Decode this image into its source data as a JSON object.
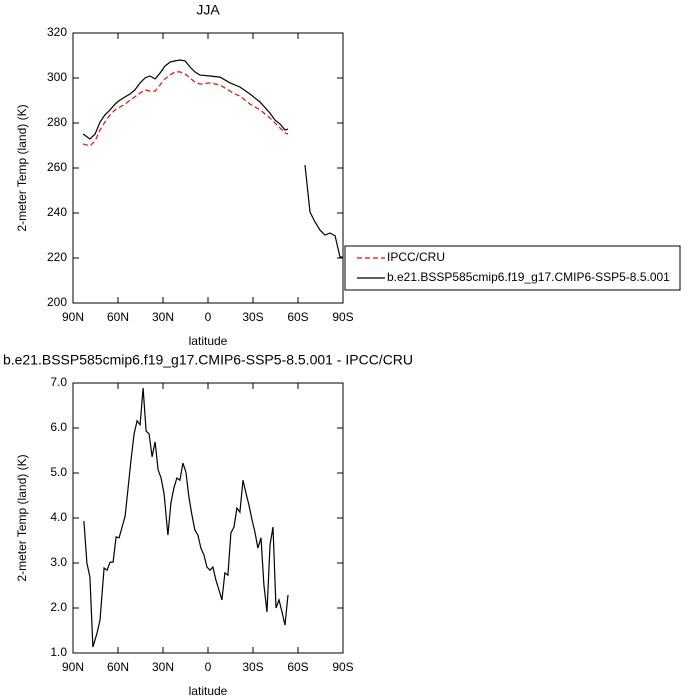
{
  "chart_data": [
    {
      "type": "line",
      "title": "JJA",
      "x_label": "latitude",
      "y_label": "2-meter Temp (land) (K)",
      "x": [
        83.3,
        78.7,
        75.3,
        72,
        68.7,
        65.3,
        62,
        58.7,
        55.3,
        52,
        48.7,
        45.3,
        42,
        38.7,
        35.3,
        32,
        28.7,
        25.3,
        22,
        18.7,
        15.3,
        12,
        8.7,
        5.3,
        -1.3,
        -8,
        -14.7,
        -18,
        -21.3,
        -28,
        -34.7,
        -41.3,
        -44.7,
        -48,
        -51.3,
        -53.3,
        -59,
        -64.7,
        -68,
        -71.3,
        -74.7,
        -78,
        -81.3,
        -84.7,
        -88,
        -90
      ],
      "series": [
        {
          "name": "IPCC/CRU",
          "color": "#ff0000",
          "dash": true,
          "values": [
            270.7,
            269.8,
            272,
            276.9,
            280.4,
            283.6,
            285.8,
            287.1,
            288.4,
            290.2,
            291.6,
            293.3,
            294.7,
            294.2,
            294.2,
            296.9,
            299.6,
            301.3,
            302.7,
            302.7,
            301.8,
            300,
            298.2,
            297.3,
            297.8,
            296.9,
            294.2,
            292.9,
            292,
            288.4,
            285.8,
            282.2,
            280,
            277.8,
            275.6,
            275.1,
            null,
            null,
            null,
            null,
            null,
            null,
            null,
            null,
            null,
            null
          ]
        },
        {
          "name": "b.e21.BSSP585cmip6.f19_g17.CMIP6-SSP5-8.5.001",
          "color": "#000000",
          "dash": false,
          "values": [
            275.1,
            272.9,
            275.1,
            280.4,
            283.6,
            285.8,
            288.4,
            290.2,
            291.6,
            292.9,
            294.7,
            297.8,
            300,
            300.9,
            299.6,
            302.2,
            305.3,
            307.1,
            307.6,
            308,
            307.6,
            304.9,
            302.7,
            301.3,
            300.9,
            300.4,
            297.8,
            296.9,
            296,
            292.9,
            289.3,
            284.4,
            281.3,
            279.6,
            276.9,
            277.3,
            null,
            261.3,
            240.4,
            236,
            232.4,
            230.2,
            231.1,
            229.8,
            220.4,
            220.4
          ]
        }
      ],
      "xlim": [
        90,
        -90
      ],
      "xticks": [
        {
          "value": 90,
          "label": "90N"
        },
        {
          "value": 60,
          "label": "60N"
        },
        {
          "value": 30,
          "label": "30N"
        },
        0,
        {
          "value": -30,
          "label": "30S"
        },
        {
          "value": -60,
          "label": "60S"
        },
        {
          "value": -90,
          "label": "90S"
        }
      ],
      "ylim": [
        200,
        320
      ],
      "yticks": [
        200,
        220,
        240,
        260,
        280,
        300,
        320
      ],
      "legend": "right"
    },
    {
      "type": "line",
      "title": "b.e21.BSSP585cmip6.f19_g17.CMIP6-SSP5-8.5.001 - IPCC/CRU",
      "x_label": "latitude",
      "y_label": "2-meter Temp (land) (K)",
      "x": [
        82.7,
        80.7,
        78.7,
        76.7,
        74,
        72,
        69.3,
        67.3,
        65.3,
        63.3,
        61.3,
        59.3,
        57.3,
        55.3,
        53.3,
        51.3,
        49.3,
        47.3,
        45.3,
        43.3,
        41.3,
        39.3,
        37.3,
        35.3,
        33.3,
        31.3,
        29.3,
        26.7,
        24.7,
        22.7,
        20.7,
        18.7,
        16.7,
        14.7,
        12.7,
        10.7,
        8.7,
        6.7,
        4.7,
        2.7,
        0.7,
        -1.3,
        -3.3,
        -5.3,
        -7.3,
        -9.3,
        -11.3,
        -13.3,
        -15.3,
        -17.3,
        -19.3,
        -21.3,
        -23.3,
        -25.3,
        -27.3,
        -29.3,
        -31.3,
        -33.3,
        -35.3,
        -37.3,
        -39.3,
        -41.3,
        -43.3,
        -45.3,
        -47.3,
        -49.3,
        -51.3,
        -53.3
      ],
      "values": [
        3.93,
        3.0,
        2.69,
        1.13,
        1.44,
        1.73,
        2.89,
        2.84,
        3.02,
        3.02,
        3.58,
        3.56,
        3.8,
        4.04,
        4.67,
        5.31,
        5.87,
        6.16,
        6.07,
        6.89,
        5.93,
        5.87,
        5.36,
        5.69,
        5.07,
        4.89,
        4.53,
        3.62,
        4.33,
        4.67,
        4.89,
        4.84,
        5.22,
        5.02,
        4.47,
        4.07,
        3.73,
        3.62,
        3.33,
        3.18,
        2.91,
        2.84,
        2.91,
        2.62,
        2.4,
        2.18,
        2.78,
        2.73,
        3.67,
        3.8,
        4.22,
        4.13,
        4.84,
        4.56,
        4.29,
        3.96,
        3.69,
        3.33,
        3.56,
        2.51,
        1.91,
        3.4,
        3.8,
        2.0,
        2.18,
        1.91,
        1.62,
        2.29
      ],
      "color": "#000000",
      "xlim": [
        90,
        -90
      ],
      "xticks": [
        {
          "value": 90,
          "label": "90N"
        },
        {
          "value": 60,
          "label": "60N"
        },
        {
          "value": 30,
          "label": "30N"
        },
        0,
        {
          "value": -30,
          "label": "30S"
        },
        {
          "value": -60,
          "label": "60S"
        },
        {
          "value": -90,
          "label": "90S"
        }
      ],
      "ylim": [
        1,
        7
      ],
      "yticks": [
        {
          "value": 1,
          "label": "1.0"
        },
        {
          "value": 2,
          "label": "2.0"
        },
        {
          "value": 3,
          "label": "3.0"
        },
        {
          "value": 4,
          "label": "4.0"
        },
        {
          "value": 5,
          "label": "5.0"
        },
        {
          "value": 6,
          "label": "6.0"
        },
        {
          "value": 7,
          "label": "7.0"
        }
      ]
    }
  ]
}
